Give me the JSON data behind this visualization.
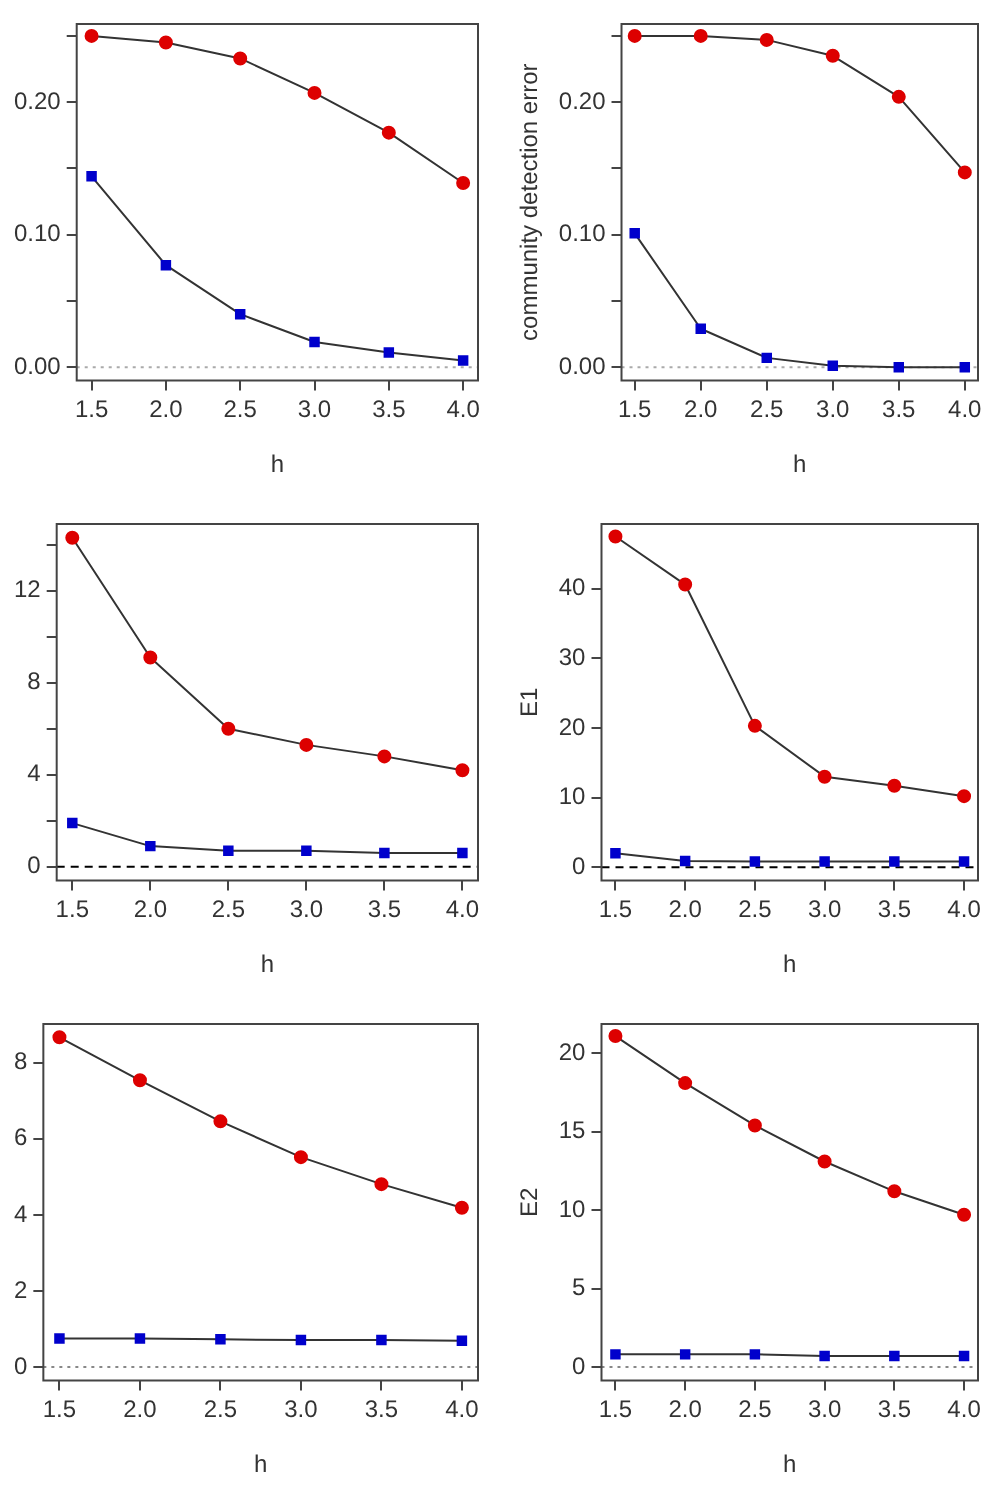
{
  "chart_data": [
    {
      "type": "line",
      "xlabel": "h",
      "x": [
        1.5,
        2.0,
        2.5,
        3.0,
        3.5,
        4.0
      ],
      "xlim": [
        1.4,
        4.1
      ],
      "xticks": [
        1.5,
        {
          "value": 2,
          "label": "2.0"
        },
        2.5,
        {
          "value": 3,
          "label": "3.0"
        },
        3.5,
        {
          "value": 4,
          "label": "4.0"
        }
      ],
      "ylim": [
        -0.01,
        0.259
      ],
      "yticks": [
        {
          "value": 0,
          "label": "0.00"
        },
        {
          "value": 0.05,
          "label": null
        },
        {
          "value": 0.1,
          "label": "0.10"
        },
        {
          "value": 0.15,
          "label": null
        },
        {
          "value": 0.2,
          "label": "0.20"
        },
        {
          "value": 0.25,
          "label": null
        }
      ],
      "grid": false,
      "legend": false,
      "ref_lines": [
        {
          "axis": "y",
          "value": 0,
          "color": "#aaaaaa",
          "line_style": "dotted"
        }
      ],
      "series": [
        {
          "color": "#dd0000",
          "marker": "circle",
          "values": [
            0.25,
            0.245,
            0.233,
            0.207,
            0.177,
            0.139
          ]
        },
        {
          "color": "#0000cc",
          "marker": "square",
          "values": [
            0.144,
            0.077,
            0.04,
            0.019,
            0.011,
            0.005
          ]
        }
      ]
    },
    {
      "type": "line",
      "xlabel": "h",
      "ylabel": "community detection error",
      "x": [
        1.5,
        2.0,
        2.5,
        3.0,
        3.5,
        4.0
      ],
      "xlim": [
        1.4,
        4.1
      ],
      "xticks": [
        1.5,
        {
          "value": 2,
          "label": "2.0"
        },
        2.5,
        {
          "value": 3,
          "label": "3.0"
        },
        3.5,
        {
          "value": 4,
          "label": "4.0"
        }
      ],
      "ylim": [
        -0.01,
        0.259
      ],
      "yticks": [
        {
          "value": 0,
          "label": "0.00"
        },
        {
          "value": 0.05,
          "label": null
        },
        {
          "value": 0.1,
          "label": "0.10"
        },
        {
          "value": 0.15,
          "label": null
        },
        {
          "value": 0.2,
          "label": "0.20"
        },
        {
          "value": 0.25,
          "label": null
        }
      ],
      "grid": false,
      "legend": false,
      "ref_lines": [
        {
          "axis": "y",
          "value": 0,
          "color": "#aaaaaa",
          "line_style": "dotted"
        }
      ],
      "series": [
        {
          "color": "#dd0000",
          "marker": "circle",
          "values": [
            0.25,
            0.25,
            0.247,
            0.235,
            0.204,
            0.147
          ]
        },
        {
          "color": "#0000cc",
          "marker": "square",
          "values": [
            0.101,
            0.029,
            0.007,
            0.001,
            0,
            0
          ]
        }
      ]
    },
    {
      "type": "line",
      "xlabel": "h",
      "x": [
        1.5,
        2.0,
        2.5,
        3.0,
        3.5,
        4.0
      ],
      "xlim": [
        1.4,
        4.1
      ],
      "xticks": [
        1.5,
        {
          "value": 2,
          "label": "2.0"
        },
        2.5,
        {
          "value": 3,
          "label": "3.0"
        },
        3.5,
        {
          "value": 4,
          "label": "4.0"
        }
      ],
      "ylim": [
        -0.59,
        14.9
      ],
      "yticks": [
        0,
        {
          "value": 2,
          "label": null
        },
        4,
        {
          "value": 6,
          "label": null
        },
        8,
        {
          "value": 10,
          "label": null
        },
        12,
        {
          "value": 14,
          "label": null
        }
      ],
      "grid": false,
      "legend": false,
      "ref_lines": [
        {
          "axis": "y",
          "value": 0,
          "color": "#000000",
          "line_style": "dashed"
        }
      ],
      "series": [
        {
          "color": "#dd0000",
          "marker": "circle",
          "values": [
            14.3,
            9.1,
            6.0,
            5.3,
            4.8,
            4.2
          ]
        },
        {
          "color": "#0000cc",
          "marker": "square",
          "values": [
            1.9,
            0.9,
            0.7,
            0.7,
            0.6,
            0.6
          ]
        }
      ]
    },
    {
      "type": "line",
      "xlabel": "h",
      "ylabel": "E1",
      "x": [
        1.5,
        2.0,
        2.5,
        3.0,
        3.5,
        4.0
      ],
      "xlim": [
        1.4,
        4.1
      ],
      "xticks": [
        1.5,
        {
          "value": 2,
          "label": "2.0"
        },
        2.5,
        {
          "value": 3,
          "label": "3.0"
        },
        3.5,
        {
          "value": 4,
          "label": "4.0"
        }
      ],
      "ylim": [
        -1.9,
        49.3
      ],
      "yticks": [
        0,
        10,
        20,
        30,
        40
      ],
      "grid": false,
      "legend": false,
      "ref_lines": [
        {
          "axis": "y",
          "value": 0,
          "color": "#000000",
          "line_style": "dashed"
        }
      ],
      "series": [
        {
          "color": "#dd0000",
          "marker": "circle",
          "values": [
            47.5,
            40.6,
            20.3,
            13.0,
            11.7,
            10.2
          ]
        },
        {
          "color": "#0000cc",
          "marker": "square",
          "values": [
            2.0,
            0.9,
            0.8,
            0.8,
            0.8,
            0.8
          ]
        }
      ]
    },
    {
      "type": "line",
      "xlabel": "h",
      "x": [
        1.5,
        2.0,
        2.5,
        3.0,
        3.5,
        4.0
      ],
      "xlim": [
        1.4,
        4.1
      ],
      "xticks": [
        1.5,
        {
          "value": 2,
          "label": "2.0"
        },
        2.5,
        {
          "value": 3,
          "label": "3.0"
        },
        3.5,
        {
          "value": 4,
          "label": "4.0"
        }
      ],
      "ylim": [
        -0.35,
        9.02
      ],
      "yticks": [
        0,
        2,
        4,
        6,
        8
      ],
      "grid": false,
      "legend": false,
      "ref_lines": [
        {
          "axis": "y",
          "value": 0,
          "color": "#888888",
          "line_style": "dotted"
        }
      ],
      "series": [
        {
          "color": "#dd0000",
          "marker": "circle",
          "values": [
            8.67,
            7.54,
            6.46,
            5.52,
            4.81,
            4.19
          ]
        },
        {
          "color": "#0000cc",
          "marker": "square",
          "values": [
            0.75,
            0.75,
            0.73,
            0.71,
            0.71,
            0.69
          ]
        }
      ]
    },
    {
      "type": "line",
      "xlabel": "h",
      "ylabel": "E2",
      "x": [
        1.5,
        2.0,
        2.5,
        3.0,
        3.5,
        4.0
      ],
      "xlim": [
        1.4,
        4.1
      ],
      "xticks": [
        1.5,
        {
          "value": 2,
          "label": "2.0"
        },
        2.5,
        {
          "value": 3,
          "label": "3.0"
        },
        3.5,
        {
          "value": 4,
          "label": "4.0"
        }
      ],
      "ylim": [
        -0.86,
        21.87
      ],
      "yticks": [
        0,
        5,
        10,
        15,
        20
      ],
      "grid": false,
      "legend": false,
      "ref_lines": [
        {
          "axis": "y",
          "value": 0,
          "color": "#888888",
          "line_style": "dotted"
        }
      ],
      "series": [
        {
          "color": "#dd0000",
          "marker": "circle",
          "values": [
            21.1,
            18.1,
            15.4,
            13.1,
            11.2,
            9.7
          ]
        },
        {
          "color": "#0000cc",
          "marker": "square",
          "values": [
            0.8,
            0.8,
            0.8,
            0.7,
            0.7,
            0.7
          ]
        }
      ]
    }
  ]
}
